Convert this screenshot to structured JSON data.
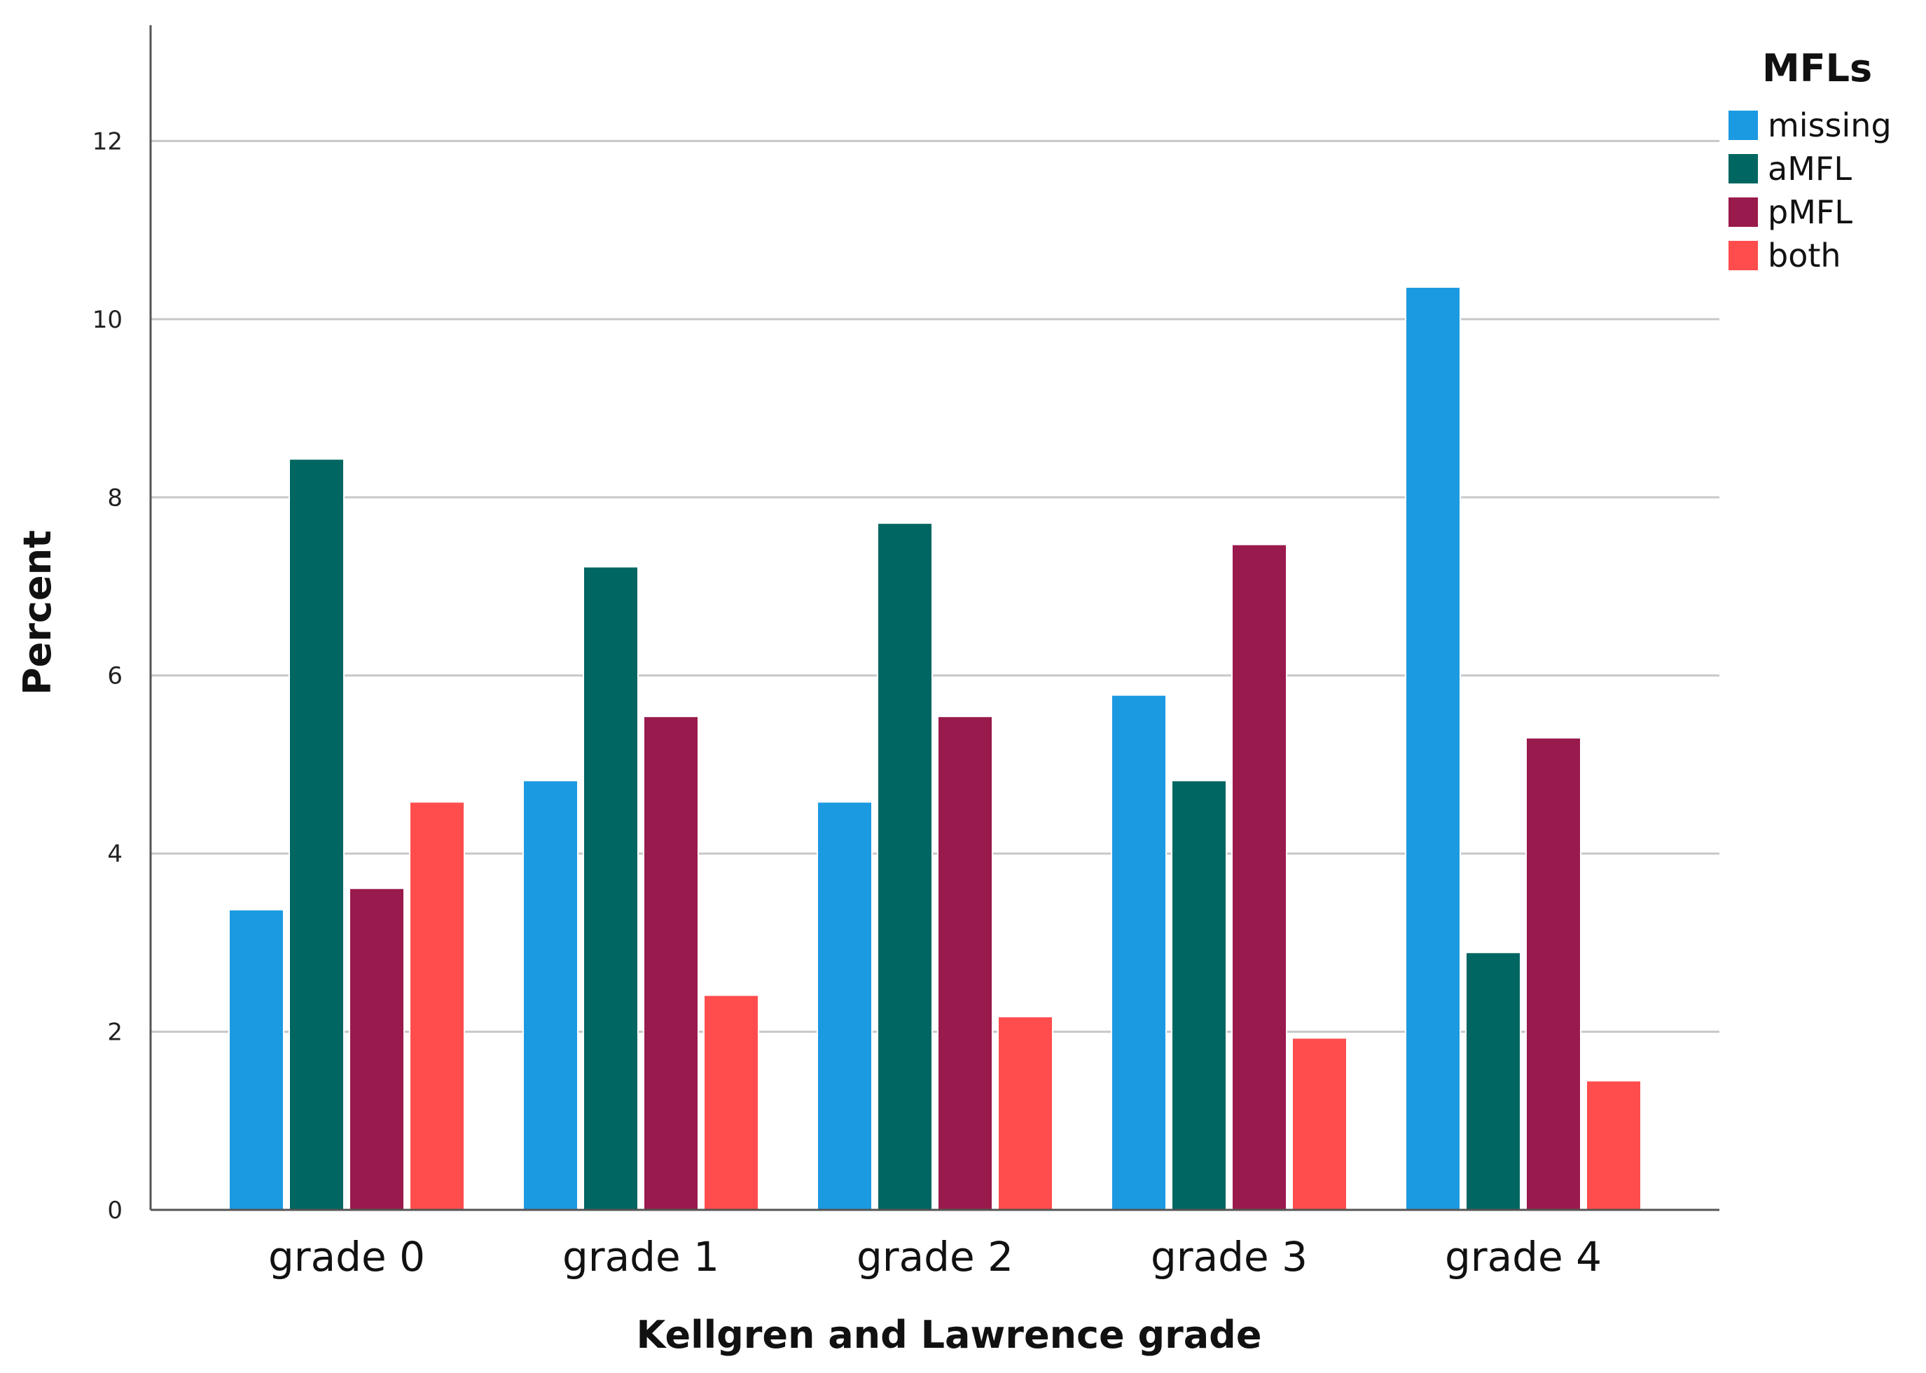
{
  "chart_data": {
    "type": "bar",
    "title": "",
    "xlabel": "Kellgren and Lawrence grade",
    "ylabel": "Percent",
    "ylim": [
      0,
      13.3
    ],
    "yticks": [
      0,
      2,
      4,
      6,
      8,
      10,
      12
    ],
    "ytick_labels": [
      "0",
      "2",
      "4",
      "6",
      "8",
      "10",
      "12"
    ],
    "grid": true,
    "categories": [
      "grade 0",
      "grade 1",
      "grade 2",
      "grade 3",
      "grade 4"
    ],
    "legend": {
      "title": "MFLs",
      "placement": "top-right"
    },
    "series": [
      {
        "name": "missing",
        "color": "#1b9ae2",
        "values": [
          3.37,
          4.82,
          4.58,
          5.78,
          10.36
        ]
      },
      {
        "name": "aMFL",
        "color": "#006661",
        "values": [
          8.43,
          7.22,
          7.71,
          4.82,
          2.89
        ]
      },
      {
        "name": "pMFL",
        "color": "#991a4c",
        "values": [
          3.61,
          5.54,
          5.54,
          7.47,
          5.3
        ]
      },
      {
        "name": "both",
        "color": "#ff4d4d",
        "values": [
          4.58,
          2.41,
          2.17,
          1.93,
          1.45
        ]
      }
    ]
  }
}
